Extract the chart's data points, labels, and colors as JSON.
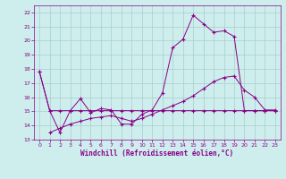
{
  "xlabel": "Windchill (Refroidissement éolien,°C)",
  "background_color": "#ceeeed",
  "grid_color": "#aacccc",
  "line_color": "#880088",
  "xlim": [
    -0.5,
    23.5
  ],
  "ylim": [
    13,
    22.5
  ],
  "yticks": [
    13,
    14,
    15,
    16,
    17,
    18,
    19,
    20,
    21,
    22
  ],
  "xticks": [
    0,
    1,
    2,
    3,
    4,
    5,
    6,
    7,
    8,
    9,
    10,
    11,
    12,
    13,
    14,
    15,
    16,
    17,
    18,
    19,
    20,
    21,
    22,
    23
  ],
  "series": [
    {
      "x": [
        0,
        1,
        2,
        3,
        4,
        5,
        6,
        7,
        8,
        9,
        10,
        11,
        12,
        13,
        14,
        15,
        16,
        17,
        18,
        19,
        20,
        21,
        22,
        23
      ],
      "y": [
        17.8,
        15.05,
        15.05,
        15.05,
        15.05,
        15.05,
        15.05,
        15.05,
        15.05,
        15.05,
        15.05,
        15.05,
        15.05,
        15.05,
        15.05,
        15.05,
        15.05,
        15.05,
        15.05,
        15.05,
        15.05,
        15.05,
        15.05,
        15.05
      ]
    },
    {
      "x": [
        0,
        1,
        2,
        3,
        4,
        5,
        6,
        7,
        8,
        9,
        10,
        11,
        12,
        13,
        14,
        15,
        16,
        17,
        18,
        19,
        20,
        21,
        22,
        23
      ],
      "y": [
        17.8,
        15.05,
        13.5,
        15.05,
        15.9,
        14.9,
        15.2,
        15.1,
        14.1,
        14.1,
        14.8,
        15.1,
        16.3,
        19.5,
        20.1,
        21.8,
        21.2,
        20.6,
        20.7,
        20.3,
        15.05,
        15.05,
        15.05,
        15.05
      ]
    },
    {
      "x": [
        1,
        2,
        3,
        4,
        5,
        6,
        7,
        8,
        9,
        10,
        11,
        12,
        13,
        14,
        15,
        16,
        17,
        18,
        19,
        20,
        21,
        22,
        23
      ],
      "y": [
        13.5,
        13.8,
        14.1,
        14.3,
        14.5,
        14.6,
        14.7,
        14.5,
        14.3,
        14.5,
        14.8,
        15.1,
        15.4,
        15.7,
        16.1,
        16.6,
        17.1,
        17.4,
        17.5,
        16.5,
        16.0,
        15.1,
        15.1
      ]
    }
  ]
}
